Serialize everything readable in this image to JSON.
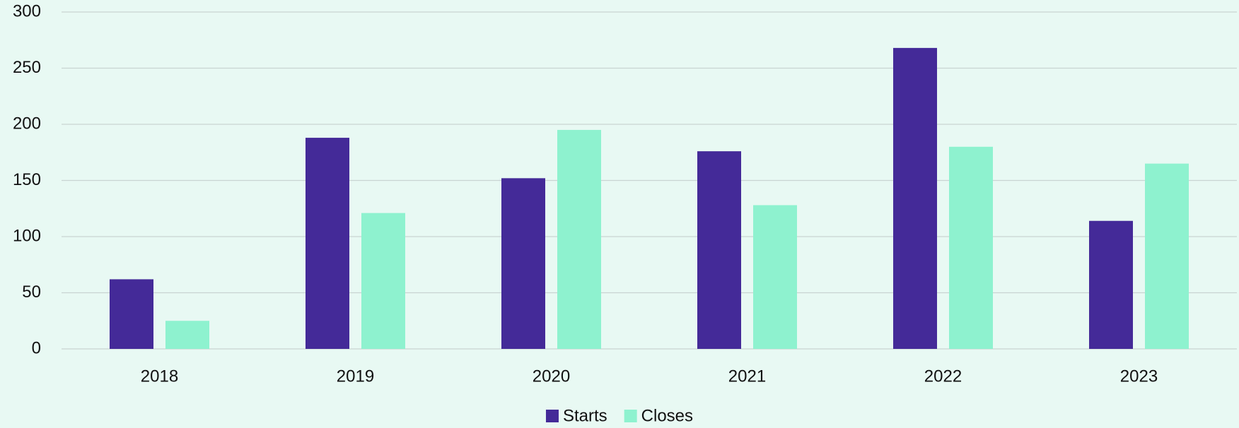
{
  "chart_data": {
    "type": "bar",
    "categories": [
      "2018",
      "2019",
      "2020",
      "2021",
      "2022",
      "2023"
    ],
    "series": [
      {
        "name": "Starts",
        "color": "#442a98",
        "values": [
          62,
          188,
          152,
          176,
          268,
          114
        ]
      },
      {
        "name": "Closes",
        "color": "#8ef2cf",
        "values": [
          25,
          121,
          195,
          128,
          180,
          165
        ]
      }
    ],
    "ylim": [
      0,
      300
    ],
    "yticks": [
      0,
      50,
      100,
      150,
      200,
      250,
      300
    ],
    "grid": true,
    "legend": "bottom"
  }
}
